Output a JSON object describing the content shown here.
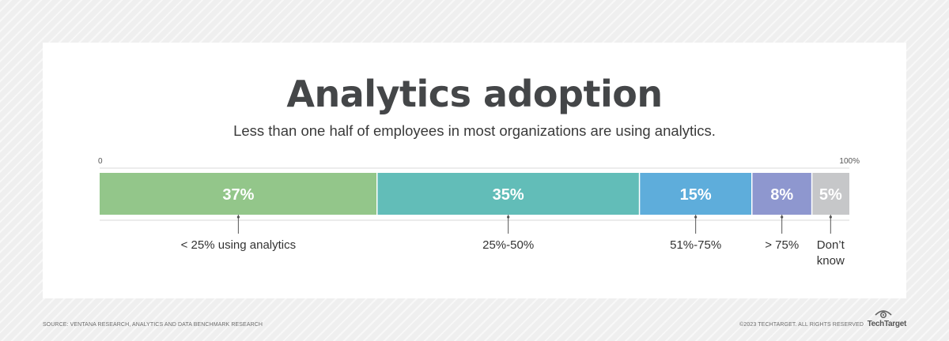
{
  "chart_data": {
    "type": "bar",
    "orientation": "horizontal-stacked",
    "title": "Analytics adoption",
    "subtitle": "Less than one half of employees in most organizations are using analytics.",
    "axis": {
      "min_label": "0",
      "max_label": "100%",
      "range": [
        0,
        100
      ]
    },
    "segments": [
      {
        "value": 37,
        "value_label": "37%",
        "category": "< 25% using analytics",
        "color": "#93c68a"
      },
      {
        "value": 35,
        "value_label": "35%",
        "category": "25%-50%",
        "color": "#62bdb8"
      },
      {
        "value": 15,
        "value_label": "15%",
        "category": "51%-75%",
        "color": "#5eaddb"
      },
      {
        "value": 8,
        "value_label": "8%",
        "category": "> 75%",
        "color": "#8e97cf"
      },
      {
        "value": 5,
        "value_label": "5%",
        "category": "Don’t know",
        "color": "#c6c7c9"
      }
    ]
  },
  "footer": {
    "source": "SOURCE: VENTANA RESEARCH, ANALYTICS AND DATA BENCHMARK RESEARCH",
    "copyright": "©2023 TECHTARGET. ALL RIGHTS RESERVED",
    "brand": "TechTarget"
  }
}
